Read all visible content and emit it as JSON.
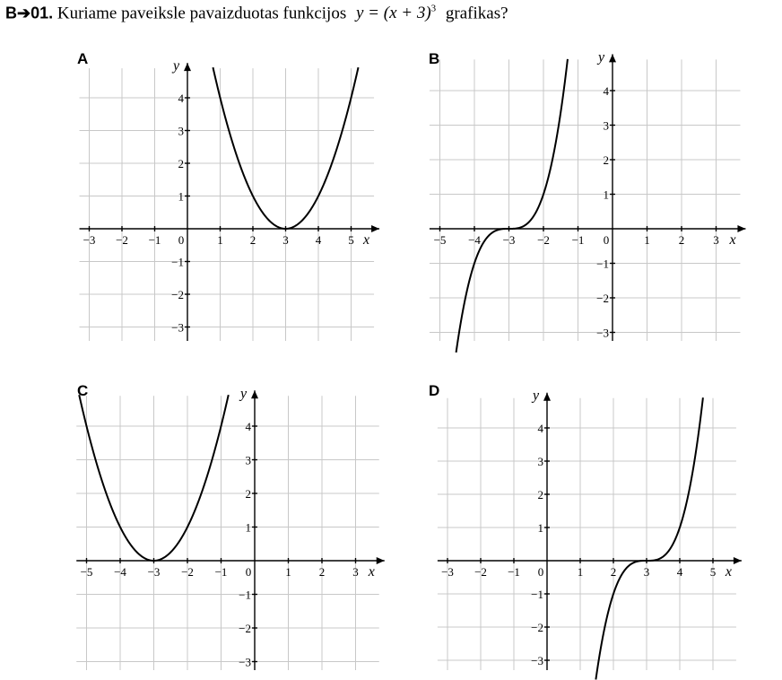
{
  "question": {
    "number": "B➔01.",
    "text": "Kuriame paveiksle pavaizduotas funkcijos",
    "formula_main": "y = (x + 3)",
    "formula_exp": "3",
    "text_after": "grafikas?"
  },
  "chart_data": [
    {
      "label": "A",
      "type": "line",
      "function": "y=(x-3)^2",
      "xlim": [
        -3,
        5
      ],
      "ylim": [
        -3,
        4
      ],
      "x_ticks": [
        "−3",
        "−2",
        "−1",
        "0",
        "1",
        "2",
        "3",
        "4",
        "5"
      ],
      "y_ticks": [
        "−3",
        "−2",
        "−1",
        "1",
        "2",
        "3",
        "4"
      ],
      "xlabel": "x",
      "ylabel": "y",
      "grid": true
    },
    {
      "label": "B",
      "type": "line",
      "function": "y=(x+3)^3",
      "xlim": [
        -5,
        3
      ],
      "ylim": [
        -3,
        4
      ],
      "x_ticks": [
        "−5",
        "−4",
        "−3",
        "−2",
        "−1",
        "0",
        "1",
        "2",
        "3"
      ],
      "y_ticks": [
        "−3",
        "−2",
        "−1",
        "1",
        "2",
        "3",
        "4"
      ],
      "xlabel": "x",
      "ylabel": "y",
      "grid": true
    },
    {
      "label": "C",
      "type": "line",
      "function": "y=(x+3)^2",
      "xlim": [
        -5,
        3
      ],
      "ylim": [
        -3,
        4
      ],
      "x_ticks": [
        "−5",
        "−4",
        "−3",
        "−2",
        "−1",
        "0",
        "1",
        "2",
        "3"
      ],
      "y_ticks": [
        "−3",
        "−2",
        "−1",
        "1",
        "2",
        "3",
        "4"
      ],
      "xlabel": "x",
      "ylabel": "y",
      "grid": true
    },
    {
      "label": "D",
      "type": "line",
      "function": "y=(x-3)^3",
      "xlim": [
        -3,
        5
      ],
      "ylim": [
        -3,
        4
      ],
      "x_ticks": [
        "−3",
        "−2",
        "−1",
        "0",
        "1",
        "2",
        "3",
        "4",
        "5"
      ],
      "y_ticks": [
        "−3",
        "−2",
        "−1",
        "1",
        "2",
        "3",
        "4"
      ],
      "xlabel": "x",
      "ylabel": "y",
      "grid": true
    }
  ]
}
